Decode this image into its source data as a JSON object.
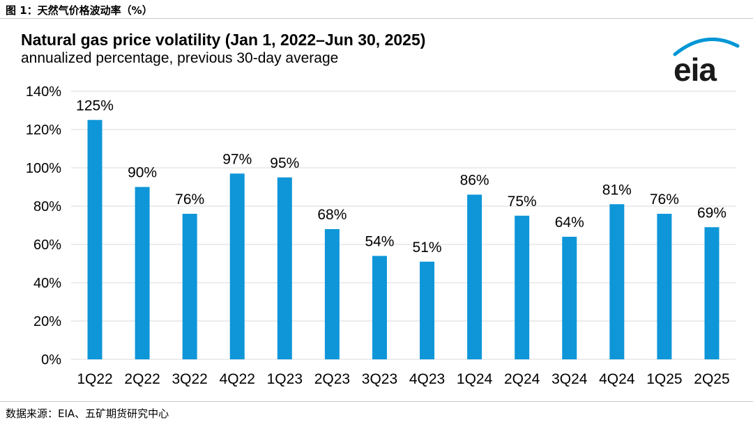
{
  "figure_caption": "图 1：天然气价格波动率（%）",
  "source": "数据来源：EIA、五矿期货研究中心",
  "logo_text": "eia",
  "logo_color": "#0096d6",
  "chart_data": {
    "type": "bar",
    "title": "Natural gas price volatility (Jan 1, 2022–Jun 30, 2025)",
    "subtitle": "annualized percentage, previous 30-day average",
    "xlabel": "",
    "ylabel": "",
    "categories": [
      "1Q22",
      "2Q22",
      "3Q22",
      "4Q22",
      "1Q23",
      "2Q23",
      "3Q23",
      "4Q23",
      "1Q24",
      "2Q24",
      "3Q24",
      "4Q24",
      "1Q25",
      "2Q25"
    ],
    "values": [
      125,
      90,
      76,
      97,
      95,
      68,
      54,
      51,
      86,
      75,
      64,
      81,
      76,
      69
    ],
    "data_labels": [
      "125%",
      "90%",
      "76%",
      "97%",
      "95%",
      "68%",
      "54%",
      "51%",
      "86%",
      "75%",
      "64%",
      "81%",
      "76%",
      "69%"
    ],
    "ylim": [
      0,
      140
    ],
    "yticks": [
      0,
      20,
      40,
      60,
      80,
      100,
      120,
      140
    ],
    "ytick_labels": [
      "0%",
      "20%",
      "40%",
      "60%",
      "80%",
      "100%",
      "120%",
      "140%"
    ],
    "grid": true,
    "bar_color": "#0e96d8",
    "grid_color": "#d9d9d9"
  }
}
